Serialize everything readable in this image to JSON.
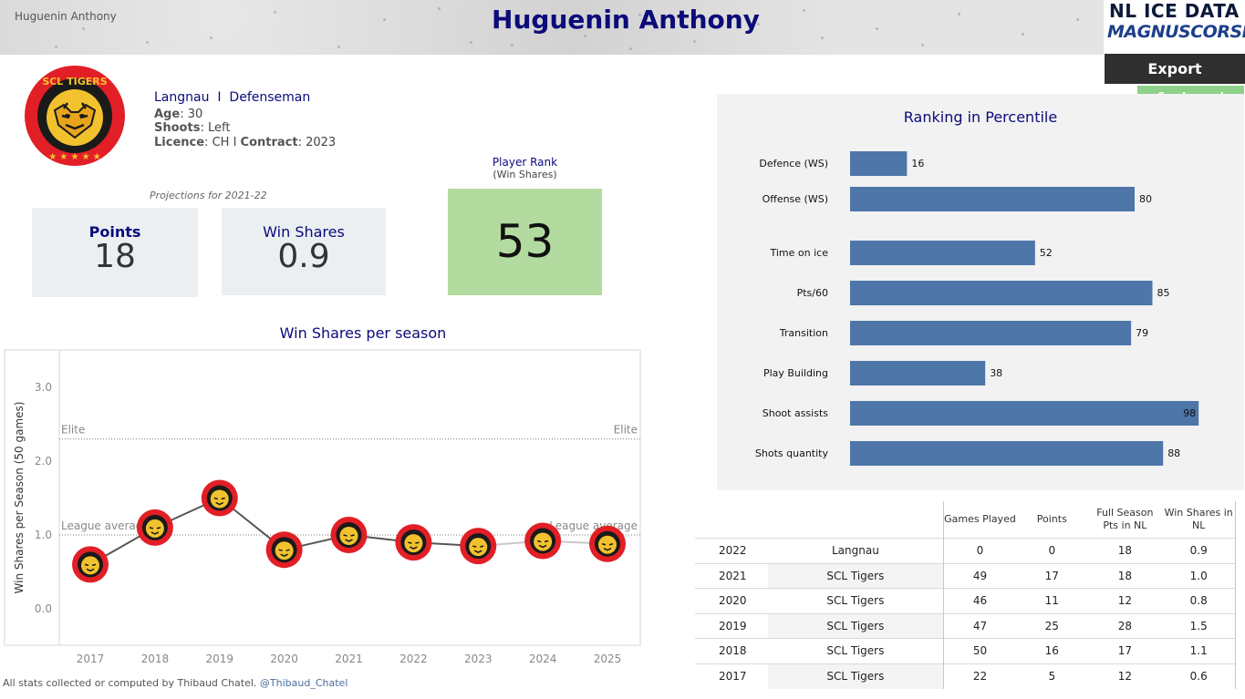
{
  "header": {
    "small_name": "Huguenin Anthony",
    "title": "Huguenin Anthony"
  },
  "brand": {
    "line1": "NL ICE DATA",
    "line2": "MAGNUSCORSI"
  },
  "actions": {
    "export_label": "Export",
    "legend_label": "See Legend"
  },
  "team_logo": {
    "icon": "scl-tigers-logo",
    "text": "SCL TIGERS"
  },
  "player": {
    "team": "Langnau",
    "separator": "I",
    "position": "Defenseman",
    "age_label": "Age",
    "age": "30",
    "shoots_label": "Shoots",
    "shoots": "Left",
    "licence_label": "Licence",
    "licence": "CH",
    "contract_sep": "I",
    "contract_label": "Contract",
    "contract": "2023"
  },
  "projections": {
    "label": "Projections for 2021-22",
    "points_label": "Points",
    "points_value": "18",
    "ws_label": "Win Shares",
    "ws_value": "0.9"
  },
  "player_rank": {
    "title": "Player Rank",
    "subtitle": "(Win Shares)",
    "value": "53"
  },
  "colors": {
    "title_blue": "#0b0b7a",
    "bar_blue": "#4e76a8",
    "rank_green": "#b3dba0",
    "legend_green": "#8fd18a",
    "tiger_red": "#e21f26",
    "tiger_yellow": "#f2c22e"
  },
  "chart_data": [
    {
      "type": "line",
      "title": "Win Shares per season",
      "ylabel": "Win Shares per Season (50 games)",
      "xlabel": "",
      "x": [
        "2017",
        "2018",
        "2019",
        "2020",
        "2021",
        "2022",
        "2023",
        "2024",
        "2025"
      ],
      "yticks": [
        "0.0",
        "1.0",
        "2.0",
        "3.0"
      ],
      "ylim": [
        -0.5,
        3.5
      ],
      "series": [
        {
          "values": [
            0.6,
            1.1,
            1.5,
            0.8,
            1.0,
            0.9,
            0.85,
            0.92,
            0.88
          ],
          "marker": "scl-tigers-logo"
        }
      ],
      "reference_lines": [
        {
          "label": "Elite",
          "value": 2.3
        },
        {
          "label": "League average",
          "value": 1.0
        }
      ],
      "grid": false
    },
    {
      "type": "bar",
      "orientation": "horizontal",
      "title": "Ranking in Percentile",
      "categories": [
        "Defence (WS)",
        "Offense (WS)",
        "Time on ice",
        "Pts/60",
        "Transition",
        "Play Building",
        "Shoot assists",
        "Shots quantity"
      ],
      "values": [
        16,
        80,
        52,
        85,
        79,
        38,
        98,
        88
      ],
      "xlim": [
        0,
        100
      ]
    },
    {
      "type": "table",
      "columns": [
        "",
        "",
        "Games Played",
        "Points",
        "Full Season Pts in NL",
        "Win Shares in NL"
      ],
      "rows": [
        [
          "2022",
          "Langnau",
          "0",
          "0",
          "18",
          "0.9"
        ],
        [
          "2021",
          "SCL Tigers",
          "49",
          "17",
          "18",
          "1.0"
        ],
        [
          "2020",
          "SCL Tigers",
          "46",
          "11",
          "12",
          "0.8"
        ],
        [
          "2019",
          "SCL Tigers",
          "47",
          "25",
          "28",
          "1.5"
        ],
        [
          "2018",
          "SCL Tigers",
          "50",
          "16",
          "17",
          "1.1"
        ],
        [
          "2017",
          "SCL Tigers",
          "22",
          "5",
          "12",
          "0.6"
        ]
      ]
    }
  ],
  "footer": {
    "text": "All stats collected or computed by Thibaud Chatel.",
    "handle": "@Thibaud_Chatel"
  }
}
